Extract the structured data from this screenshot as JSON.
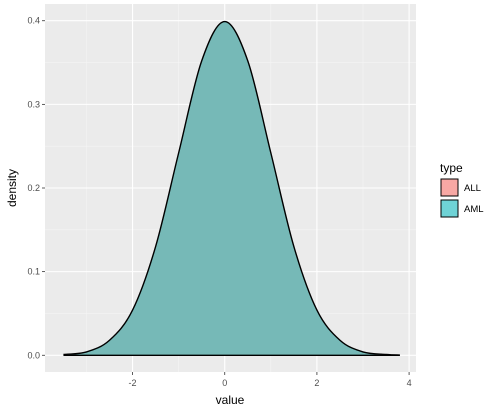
{
  "chart_data": {
    "type": "area",
    "xlabel": "value",
    "ylabel": "density",
    "xlim": [
      -3.9,
      4.15
    ],
    "ylim": [
      -0.02,
      0.42
    ],
    "x_ticks": [
      -2,
      0,
      2,
      4
    ],
    "x_tick_labels": [
      "-2",
      "0",
      "2",
      "4"
    ],
    "y_ticks": [
      0.0,
      0.1,
      0.2,
      0.3,
      0.4
    ],
    "y_tick_labels": [
      "0.0",
      "0.1",
      "0.2",
      "0.3",
      "0.4"
    ],
    "grid": true,
    "legend_position": "right",
    "legend": {
      "title": "type",
      "entries": [
        {
          "label": "ALL",
          "color": "#F8A8A4"
        },
        {
          "label": "AML",
          "color": "#6FD3D6"
        }
      ]
    },
    "series": [
      {
        "name": "AML",
        "color": "#76B9B7",
        "x": [
          -3.5,
          -3.0,
          -2.5,
          -2.0,
          -1.5,
          -1.0,
          -0.5,
          0.0,
          0.5,
          1.0,
          1.5,
          2.0,
          2.5,
          3.0,
          3.5,
          3.8
        ],
        "y": [
          0.001,
          0.004,
          0.018,
          0.054,
          0.13,
          0.242,
          0.352,
          0.399,
          0.352,
          0.242,
          0.13,
          0.054,
          0.018,
          0.004,
          0.001,
          0.0003
        ]
      }
    ]
  }
}
